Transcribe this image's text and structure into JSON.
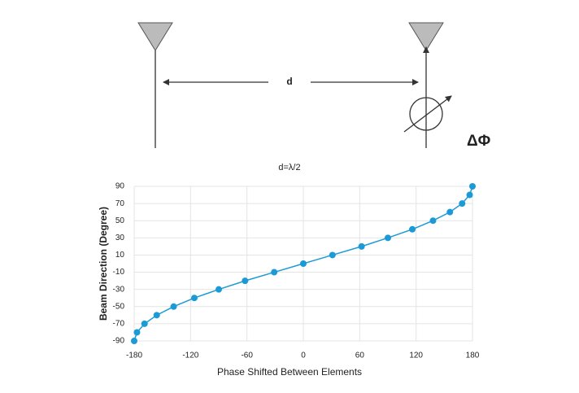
{
  "chart_data": {
    "type": "line",
    "title": "d=λ/2",
    "annotations": [
      "d",
      "ΔΦ"
    ],
    "x_label": "Phase Shifted Between Elements",
    "y_label": "Beam Direction (Degree)",
    "x": [
      -180,
      -177,
      -169,
      -156,
      -138,
      -116,
      -90,
      -62,
      -31,
      0,
      31,
      62,
      90,
      116,
      138,
      156,
      169,
      177,
      180
    ],
    "values": [
      -90,
      -80,
      -70,
      -60,
      -50,
      -40,
      -30,
      -20,
      -10,
      0,
      10,
      20,
      30,
      40,
      50,
      60,
      70,
      80,
      90
    ],
    "color": "#1b9ad6",
    "xlim": [
      -180,
      180
    ],
    "xticks": [
      -180,
      -120,
      -60,
      0,
      60,
      120,
      180
    ],
    "ylim": [
      -90,
      90
    ],
    "yticks": [
      -90,
      -70,
      -50,
      -30,
      -10,
      10,
      30,
      50,
      70,
      90
    ],
    "grid": true
  }
}
